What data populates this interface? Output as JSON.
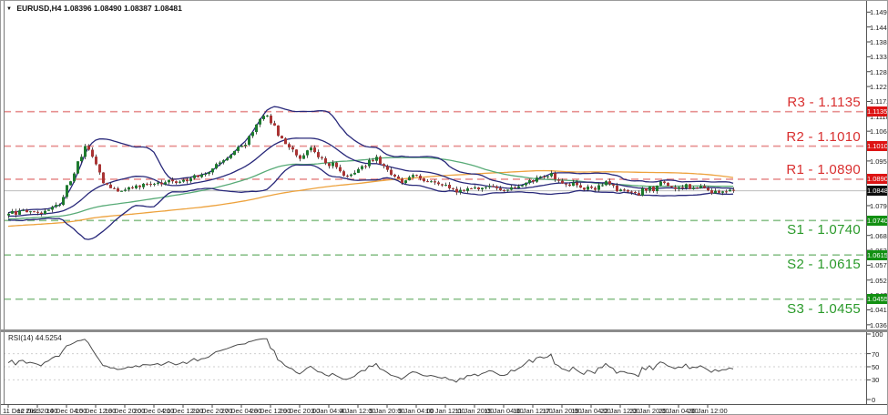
{
  "title": {
    "marker": "▼",
    "symbol": "EURUSD,H4",
    "ohlc_text": "1.08396 1.08490 1.08387 1.08481"
  },
  "colors": {
    "background": "#ffffff",
    "border": "#8c8c8c",
    "candle_up": "#1d7a2e",
    "candle_down": "#aa3434",
    "wick": "#2b2b2b",
    "bollinger": "#28287a",
    "ma_teal": "#58ab77",
    "ma_orange": "#eda23d",
    "resistance_line": "#e79090",
    "resistance_text": "#d92f2f",
    "resistance_box": "#dd1414",
    "support_line": "#8cc28c",
    "support_text": "#2a9a2a",
    "support_box": "#129012",
    "current_price_line": "#bdbdbd",
    "current_price_box": "#0d0d0d",
    "rsi_line": "#4a4a4a",
    "rsi_grid": "#cfcfcf",
    "axis_text": "#1a1a1a"
  },
  "price_axis": {
    "ticks": [
      "1.14960",
      "1.14420",
      "1.13880",
      "1.13340",
      "1.12800",
      "1.12260",
      "1.11720",
      "1.11180",
      "1.10640",
      "1.10100",
      "1.09560",
      "1.09020",
      "1.08480",
      "1.07940",
      "1.07400",
      "1.06860",
      "1.06320",
      "1.05780",
      "1.05240",
      "1.04700",
      "1.04160",
      "1.03620"
    ]
  },
  "time_axis": {
    "labels": [
      "11 Dec 2023",
      "12 Dec 20:00",
      "14 Dec 04:00",
      "15 Dec 12:00",
      "18 Dec 20:00",
      "20 Dec 04:00",
      "21 Dec 12:00",
      "22 Dec 20:00",
      "27 Dec 04:00",
      "28 Dec 12:00",
      "29 Dec 20:00",
      "3 Jan 04:00",
      "4 Jan 12:00",
      "5 Jan 20:00",
      "9 Jan 04:00",
      "10 Jan 12:00",
      "11 Jan 20:00",
      "15 Jan 04:00",
      "16 Jan 12:00",
      "17 Jan 20:00",
      "19 Jan 04:00",
      "22 Jan 12:00",
      "23 Jan 20:00",
      "25 Jan 04:00",
      "26 Jan 12:00"
    ]
  },
  "rsi_pane": {
    "label_name": "RSI(14)",
    "label_value": "44.5254",
    "grid_levels": [
      70,
      50,
      30
    ],
    "axis_labels": [
      {
        "v": 100,
        "t": "100"
      },
      {
        "v": 70,
        "t": "70"
      },
      {
        "v": 50,
        "t": "50"
      },
      {
        "v": 30,
        "t": "30"
      },
      {
        "v": 0,
        "t": "0"
      }
    ]
  },
  "current_price": {
    "value": 1.08481,
    "axis_label": "1.08481"
  },
  "chart_data": {
    "type": "candlestick",
    "symbol": "EURUSD",
    "timeframe": "H4",
    "ohlc_last_bar": {
      "open": 1.08396,
      "high": 1.0849,
      "low": 1.08387,
      "close": 1.08481
    },
    "price_range_shown": [
      1.0345,
      1.153
    ],
    "bars": 200,
    "levels": [
      {
        "name": "R3",
        "price": 1.1135,
        "label": "R3 - 1.1135",
        "axis_label": "1.11350",
        "kind": "resistance"
      },
      {
        "name": "R2",
        "price": 1.101,
        "label": "R2 - 1.1010",
        "axis_label": "1.10100",
        "kind": "resistance"
      },
      {
        "name": "R1",
        "price": 1.089,
        "label": "R1 - 1.0890",
        "axis_label": "1.08900",
        "kind": "resistance"
      },
      {
        "name": "S1",
        "price": 1.074,
        "label": "S1 - 1.0740",
        "axis_label": "1.07400",
        "kind": "support"
      },
      {
        "name": "S2",
        "price": 1.0615,
        "label": "S2 - 1.0615",
        "axis_label": "1.06150",
        "kind": "support"
      },
      {
        "name": "S3",
        "price": 1.0455,
        "label": "S3 - 1.0455",
        "axis_label": "1.04550",
        "kind": "support"
      }
    ],
    "indicators": {
      "bollinger": {
        "period": 20,
        "deviation": 2
      },
      "ma_fast": {
        "period": 60
      },
      "ma_slow": {
        "period": 130
      },
      "rsi": {
        "period": 14,
        "current_value": 44.5254
      }
    },
    "prehistory_anchors": [
      [
        -140,
        1.064
      ],
      [
        -110,
        1.0685
      ],
      [
        -80,
        1.0712
      ],
      [
        -50,
        1.073
      ],
      [
        -25,
        1.0748
      ],
      [
        -1,
        1.076
      ]
    ],
    "close_anchors": [
      [
        0,
        1.0762
      ],
      [
        4,
        1.0779
      ],
      [
        8,
        1.077
      ],
      [
        12,
        1.0783
      ],
      [
        14,
        1.0802
      ],
      [
        17,
        1.0888
      ],
      [
        19,
        1.0952
      ],
      [
        21,
        1.1008
      ],
      [
        23,
        1.0964
      ],
      [
        26,
        1.088
      ],
      [
        30,
        1.0843
      ],
      [
        34,
        1.0862
      ],
      [
        40,
        1.0873
      ],
      [
        46,
        1.0882
      ],
      [
        52,
        1.09
      ],
      [
        56,
        1.0927
      ],
      [
        60,
        1.0963
      ],
      [
        64,
        1.1006
      ],
      [
        67,
        1.1062
      ],
      [
        70,
        1.1128
      ],
      [
        72,
        1.1102
      ],
      [
        75,
        1.1038
      ],
      [
        78,
        1.099
      ],
      [
        80,
        1.0963
      ],
      [
        83,
        1.1003
      ],
      [
        86,
        1.0966
      ],
      [
        89,
        1.0937
      ],
      [
        93,
        1.0904
      ],
      [
        97,
        1.0942
      ],
      [
        101,
        1.0956
      ],
      [
        104,
        1.0914
      ],
      [
        108,
        1.0882
      ],
      [
        112,
        1.0909
      ],
      [
        116,
        1.0874
      ],
      [
        120,
        1.0856
      ],
      [
        124,
        1.0844
      ],
      [
        128,
        1.0853
      ],
      [
        132,
        1.0861
      ],
      [
        136,
        1.0849
      ],
      [
        140,
        1.0863
      ],
      [
        144,
        1.0891
      ],
      [
        148,
        1.0906
      ],
      [
        152,
        1.0882
      ],
      [
        156,
        1.0863
      ],
      [
        160,
        1.0859
      ],
      [
        164,
        1.0871
      ],
      [
        168,
        1.0853
      ],
      [
        172,
        1.0834
      ],
      [
        176,
        1.0856
      ],
      [
        180,
        1.0873
      ],
      [
        184,
        1.0863
      ],
      [
        188,
        1.0851
      ],
      [
        192,
        1.0857
      ],
      [
        196,
        1.0843
      ],
      [
        199,
        1.08481
      ]
    ],
    "noise": 0.0016,
    "wick": 0.001,
    "seed": 7
  }
}
